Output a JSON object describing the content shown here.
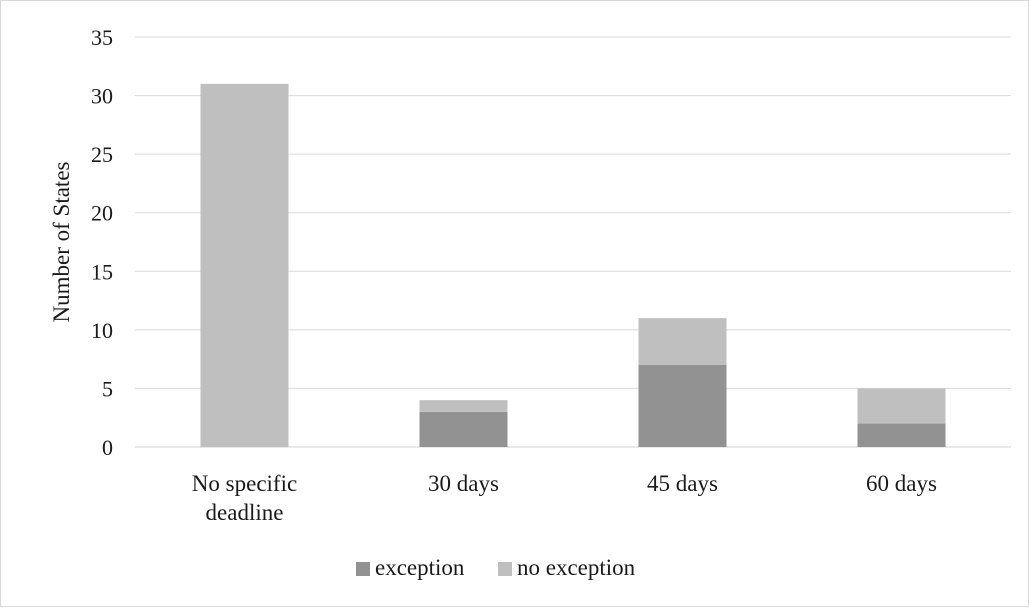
{
  "chart_data": {
    "type": "bar",
    "stacked": true,
    "title": "",
    "xlabel": "",
    "ylabel": "Number of States",
    "ylim": [
      0,
      35
    ],
    "yticks": [
      0,
      5,
      10,
      15,
      20,
      25,
      30,
      35
    ],
    "grid": true,
    "legend_position": "bottom",
    "categories": [
      [
        "No specific",
        "deadline"
      ],
      [
        "30 days"
      ],
      [
        "45 days"
      ],
      [
        "60 days"
      ]
    ],
    "series": [
      {
        "name": "exception",
        "color": "#929292",
        "values": [
          0,
          3,
          7,
          2
        ]
      },
      {
        "name": "no exception",
        "color": "#bfbfbf",
        "values": [
          31,
          1,
          4,
          3
        ]
      }
    ]
  }
}
